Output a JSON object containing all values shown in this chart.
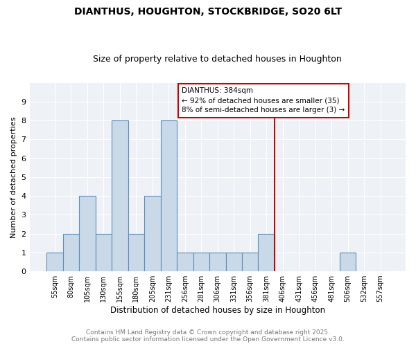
{
  "title": "DIANTHUS, HOUGHTON, STOCKBRIDGE, SO20 6LT",
  "subtitle": "Size of property relative to detached houses in Houghton",
  "xlabel": "Distribution of detached houses by size in Houghton",
  "ylabel": "Number of detached properties",
  "categories": [
    "55sqm",
    "80sqm",
    "105sqm",
    "130sqm",
    "155sqm",
    "180sqm",
    "205sqm",
    "231sqm",
    "256sqm",
    "281sqm",
    "306sqm",
    "331sqm",
    "356sqm",
    "381sqm",
    "406sqm",
    "431sqm",
    "456sqm",
    "481sqm",
    "506sqm",
    "532sqm",
    "557sqm"
  ],
  "values": [
    1,
    2,
    4,
    2,
    8,
    2,
    4,
    8,
    1,
    1,
    1,
    1,
    1,
    2,
    0,
    0,
    0,
    0,
    1,
    0,
    0
  ],
  "bar_color": "#c9d9e8",
  "bar_edge_color": "#5b8db8",
  "vline_x": 13.5,
  "vline_color": "#cc0000",
  "annotation_text": "DIANTHUS: 384sqm\n← 92% of detached houses are smaller (35)\n8% of semi-detached houses are larger (3) →",
  "annotation_box_color": "#cc0000",
  "ylim": [
    0,
    10
  ],
  "yticks": [
    0,
    1,
    2,
    3,
    4,
    5,
    6,
    7,
    8,
    9,
    10
  ],
  "bg_color": "#eef2f7",
  "footer": "Contains HM Land Registry data © Crown copyright and database right 2025.\nContains public sector information licensed under the Open Government Licence v3.0.",
  "title_fontsize": 10,
  "subtitle_fontsize": 9,
  "annotation_fontsize": 7.5,
  "footer_fontsize": 6.5
}
